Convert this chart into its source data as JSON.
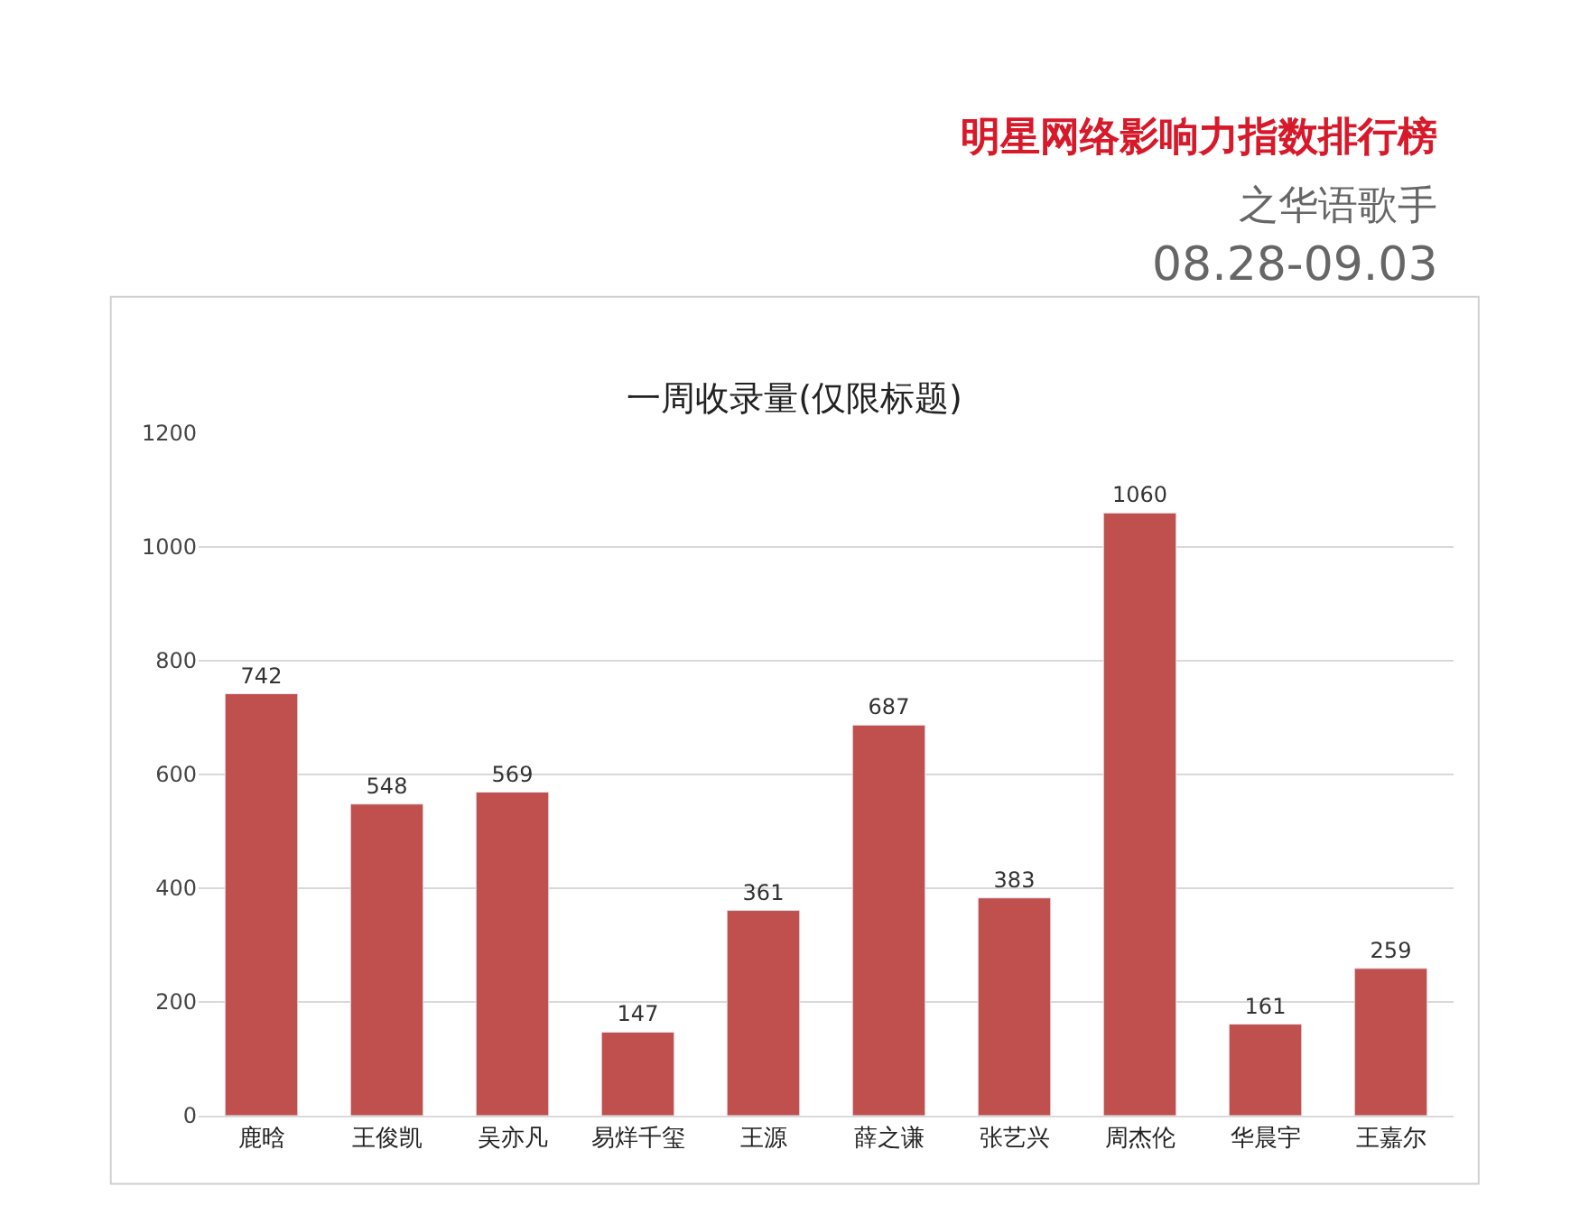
{
  "chart_data": {
    "type": "bar",
    "title": "一周收录量(仅限标题)",
    "annotations": [
      "明星网络影响力指数排行榜",
      "之华语歌手",
      "08.28-09.03"
    ],
    "categories": [
      "鹿晗",
      "王俊凯",
      "吴亦凡",
      "易烊千玺",
      "王源",
      "薛之谦",
      "张艺兴",
      "周杰伦",
      "华晨宇",
      "王嘉尔"
    ],
    "values": [
      742,
      548,
      569,
      147,
      361,
      687,
      383,
      1060,
      161,
      259
    ],
    "color": "#c0504d",
    "ylim": [
      0,
      1200
    ],
    "yticks": [
      0,
      200,
      400,
      600,
      800,
      1000,
      1200
    ],
    "grid": "y",
    "data_labels": true,
    "legend": false
  }
}
